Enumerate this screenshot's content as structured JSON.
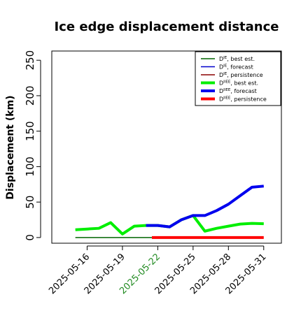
{
  "chart_data": {
    "type": "line",
    "title": "Ice edge displacement distance",
    "xlabel": "",
    "ylabel": "Displacement (km)",
    "ylim": [
      -8,
      263
    ],
    "yticks": [
      0,
      50,
      100,
      150,
      200,
      250
    ],
    "xlim": [
      "2025-05-13T00:00",
      "2025-06-01T12:00"
    ],
    "xticks": [
      {
        "date": "2025-05-16",
        "color": "#000000"
      },
      {
        "date": "2025-05-19",
        "color": "#000000"
      },
      {
        "date": "2025-05-22",
        "color": "#228B22"
      },
      {
        "date": "2025-05-25",
        "color": "#000000"
      },
      {
        "date": "2025-05-28",
        "color": "#000000"
      },
      {
        "date": "2025-05-31",
        "color": "#000000"
      }
    ],
    "grid": false,
    "legend_position": "top-right",
    "series": [
      {
        "name": "D^IE, best est.",
        "legend_main": "D",
        "legend_sup": "IE",
        "legend_rest": ", best est.",
        "color": "#006400",
        "width": 1.5,
        "points": [
          [
            "2025-05-15",
            0
          ],
          [
            "2025-05-21T12:00",
            0
          ]
        ]
      },
      {
        "name": "D^IE, forecast",
        "legend_main": "D",
        "legend_sup": "IE",
        "legend_rest": ", forecast",
        "color": "#0000CD",
        "width": 1.5,
        "points": []
      },
      {
        "name": "D^IE, persistence",
        "legend_main": "D",
        "legend_sup": "IE",
        "legend_rest": ", persistence",
        "color": "#8B0000",
        "width": 1.5,
        "points": []
      },
      {
        "name": "D^IIEE, best est.",
        "legend_main": "D",
        "legend_sup": "IIEE",
        "legend_rest": ", best est.",
        "color": "#00EE00",
        "width": 4,
        "points": [
          [
            "2025-05-15",
            11
          ],
          [
            "2025-05-16",
            12
          ],
          [
            "2025-05-17",
            13
          ],
          [
            "2025-05-18",
            21
          ],
          [
            "2025-05-19",
            5
          ],
          [
            "2025-05-20",
            16
          ],
          [
            "2025-05-21",
            17
          ],
          [
            "2025-05-22",
            17
          ],
          [
            "2025-05-23",
            15
          ],
          [
            "2025-05-24",
            25
          ],
          [
            "2025-05-25",
            31
          ],
          [
            "2025-05-26",
            9
          ],
          [
            "2025-05-27",
            13
          ],
          [
            "2025-05-28",
            16
          ],
          [
            "2025-05-29",
            19
          ],
          [
            "2025-05-30",
            20
          ],
          [
            "2025-05-31",
            19.5
          ]
        ]
      },
      {
        "name": "D^IIEE, forecast",
        "legend_main": "D",
        "legend_sup": "IIEE",
        "legend_rest": ", forecast",
        "color": "#0000EE",
        "width": 4,
        "points": [
          [
            "2025-05-21",
            17
          ],
          [
            "2025-05-22",
            17
          ],
          [
            "2025-05-23",
            15
          ],
          [
            "2025-05-24",
            25
          ],
          [
            "2025-05-25",
            31
          ],
          [
            "2025-05-26",
            31
          ],
          [
            "2025-05-27",
            38
          ],
          [
            "2025-05-28",
            47
          ],
          [
            "2025-05-29",
            59
          ],
          [
            "2025-05-30",
            71
          ],
          [
            "2025-05-31",
            72.5
          ]
        ]
      },
      {
        "name": "D^IIEE, persistence",
        "legend_main": "D",
        "legend_sup": "IIEE",
        "legend_rest": ", persistence",
        "color": "#FF0000",
        "width": 4,
        "points": [
          [
            "2025-05-21T12:00",
            0
          ],
          [
            "2025-05-31",
            0
          ]
        ]
      }
    ]
  }
}
